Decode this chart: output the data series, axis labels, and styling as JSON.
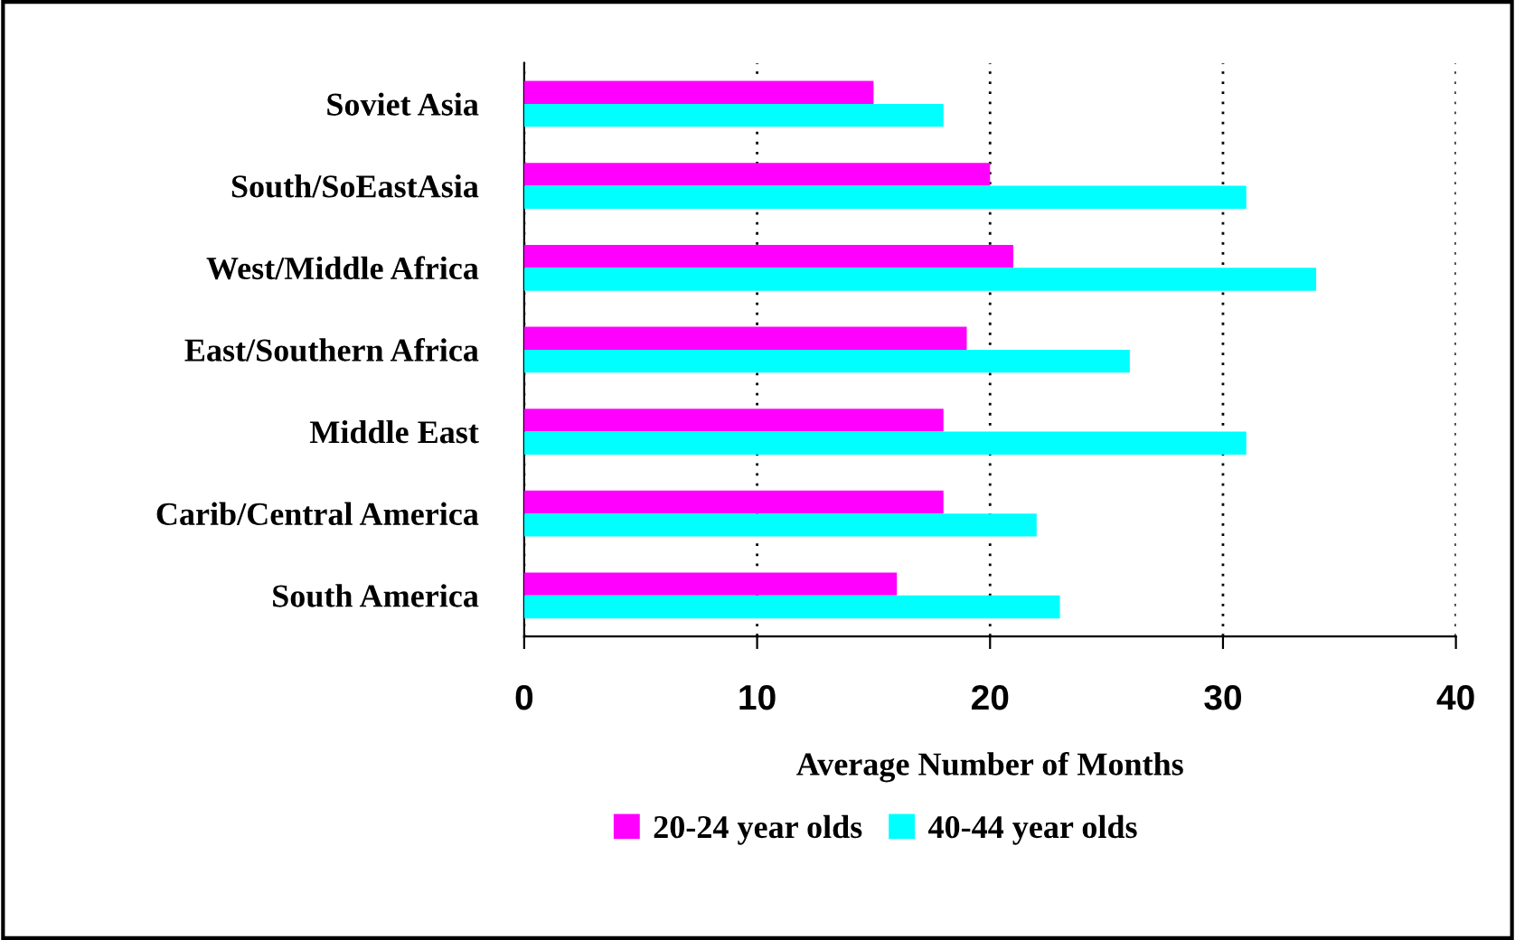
{
  "chart_data": {
    "type": "bar",
    "orientation": "horizontal",
    "categories": [
      "Soviet Asia",
      "South/SoEastAsia",
      "West/Middle Africa",
      "East/Southern Africa",
      "Middle East",
      "Carib/Central America",
      "South America"
    ],
    "series": [
      {
        "name": "20-24 year olds",
        "color": "#ff00ff",
        "values": [
          15,
          20,
          21,
          19,
          18,
          18,
          16
        ]
      },
      {
        "name": "40-44 year olds",
        "color": "#00ffff",
        "values": [
          18,
          31,
          34,
          26,
          31,
          22,
          23
        ]
      }
    ],
    "xlabel": "Average Number of Months",
    "xlim": [
      0,
      40
    ],
    "xticks": [
      0,
      10,
      20,
      30,
      40
    ],
    "grid": "x",
    "legend": "bottom"
  }
}
